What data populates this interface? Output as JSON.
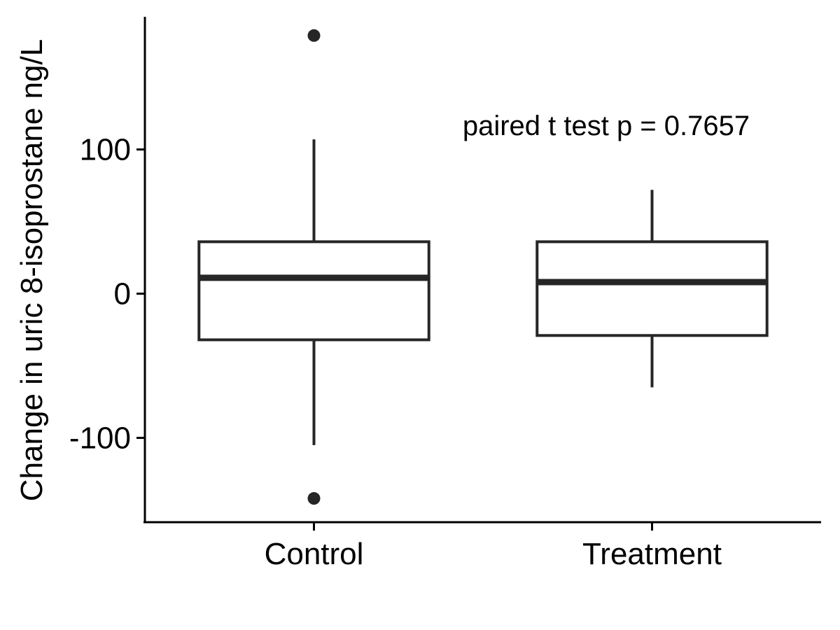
{
  "chart_data": {
    "type": "box",
    "categories": [
      "Control",
      "Treatment"
    ],
    "boxes": [
      {
        "name": "Control",
        "lower_whisker": -105,
        "q1": -32,
        "median": 11,
        "q3": 36,
        "upper_whisker": 107,
        "outliers": [
          179,
          -142
        ]
      },
      {
        "name": "Treatment",
        "lower_whisker": -65,
        "q1": -29,
        "median": 8,
        "q3": 36,
        "upper_whisker": 72,
        "outliers": []
      }
    ],
    "xlabel": "",
    "ylabel": "Change in uric 8-isoprostane ng/L",
    "yticks": [
      -100,
      0,
      100
    ],
    "ylim": [
      -158,
      192
    ],
    "annotation": "paired t test p = 0.7657",
    "grid": false,
    "legend": "none"
  }
}
